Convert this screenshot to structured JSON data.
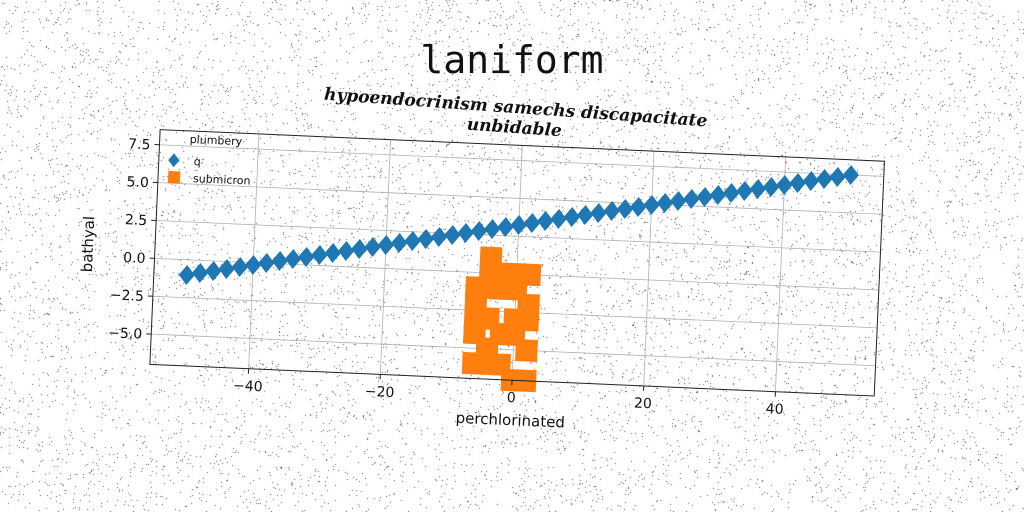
{
  "title": "laniform",
  "subtitle": "hypoendocrinism samechs discapacitate unbidable",
  "chart_data": {
    "type": "scatter",
    "xlabel": "perchlorinated",
    "ylabel": "bathyal",
    "xlim": [
      -55,
      55
    ],
    "ylim": [
      -7,
      8.5
    ],
    "xticks": [
      -40,
      -20,
      0,
      20,
      40
    ],
    "yticks": [
      7.5,
      5.0,
      2.5,
      0.0,
      -2.5,
      -5.0
    ],
    "xtick_labels": [
      "−40",
      "−20",
      "0",
      "20",
      "40"
    ],
    "ytick_labels": [
      "7.5",
      "5.0",
      "2.5",
      "0.0",
      "−2.5",
      "−5.0"
    ],
    "grid": true,
    "legend": {
      "title": "plumbery",
      "placement": "top-left"
    },
    "series": [
      {
        "name": "q",
        "marker": "diamond",
        "color": "#1f77b4",
        "x": [
          -50,
          -48,
          -46,
          -44,
          -42,
          -40,
          -38,
          -36,
          -34,
          -32,
          -30,
          -28,
          -26,
          -24,
          -22,
          -20,
          -18,
          -16,
          -14,
          -12,
          -10,
          -8,
          -6,
          -4,
          -2,
          0,
          2,
          4,
          6,
          8,
          10,
          12,
          14,
          16,
          18,
          20,
          22,
          24,
          26,
          28,
          30,
          32,
          34,
          36,
          38,
          40,
          42,
          44,
          46,
          48,
          50
        ],
        "y": [
          -1.0,
          -0.83,
          -0.66,
          -0.49,
          -0.32,
          -0.15,
          0.02,
          0.19,
          0.36,
          0.53,
          0.7,
          0.87,
          1.04,
          1.21,
          1.38,
          1.55,
          1.72,
          1.89,
          2.06,
          2.23,
          2.4,
          2.57,
          2.74,
          2.91,
          3.08,
          3.25,
          3.42,
          3.59,
          3.76,
          3.93,
          4.1,
          4.27,
          4.44,
          4.61,
          4.78,
          4.95,
          5.12,
          5.29,
          5.46,
          5.63,
          5.8,
          5.97,
          6.14,
          6.31,
          6.48,
          6.65,
          6.82,
          6.99,
          7.16,
          7.33,
          7.5
        ]
      },
      {
        "name": "submicron",
        "marker": "square",
        "color": "#ff7f0e",
        "x": [
          -4,
          -4,
          -6,
          -2,
          -2,
          -4,
          -6,
          -6,
          -4,
          0,
          2,
          0,
          2,
          2,
          0,
          0,
          -2,
          -6,
          -6,
          -4,
          -4,
          2,
          -6,
          -4,
          -2,
          0,
          2
        ],
        "y": [
          1.0,
          0,
          -1,
          -1,
          0,
          -1,
          -2,
          -3,
          -3,
          0,
          0,
          -1,
          -2,
          -3,
          -3,
          -4,
          -4,
          -4,
          -4,
          -5,
          -5,
          -5,
          -6,
          -6,
          -6,
          -7,
          -7
        ]
      }
    ]
  }
}
